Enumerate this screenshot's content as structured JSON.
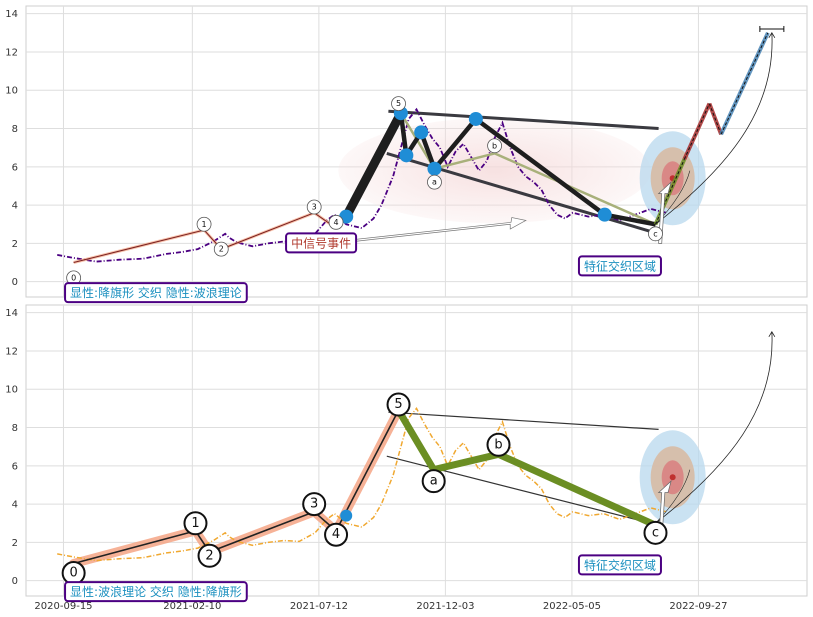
{
  "chart_data": [
    {
      "type": "line",
      "ylim": [
        -0.8,
        14.4
      ],
      "yticks": [
        0,
        2,
        4,
        6,
        8,
        10,
        12,
        14
      ],
      "xticks": [
        "2020-09-15",
        "2021-02-10",
        "2021-07-12",
        "2021-12-03",
        "2022-05-05",
        "2022-09-27"
      ],
      "grid": true,
      "price_color": "#4b0082",
      "price_series": [
        [
          0.04,
          1.4
        ],
        [
          0.06,
          1.25
        ],
        [
          0.09,
          1.05
        ],
        [
          0.12,
          1.15
        ],
        [
          0.15,
          1.2
        ],
        [
          0.18,
          1.45
        ],
        [
          0.2,
          1.55
        ],
        [
          0.22,
          1.7
        ],
        [
          0.24,
          2.1
        ],
        [
          0.255,
          2.5
        ],
        [
          0.26,
          2.3
        ],
        [
          0.27,
          2.05
        ],
        [
          0.29,
          1.85
        ],
        [
          0.31,
          2.0
        ],
        [
          0.33,
          2.1
        ],
        [
          0.35,
          2.05
        ],
        [
          0.37,
          2.5
        ],
        [
          0.385,
          3.2
        ],
        [
          0.395,
          3.5
        ],
        [
          0.41,
          3.0
        ],
        [
          0.43,
          2.8
        ],
        [
          0.445,
          3.3
        ],
        [
          0.455,
          4.0
        ],
        [
          0.47,
          5.5
        ],
        [
          0.48,
          7.0
        ],
        [
          0.49,
          8.5
        ],
        [
          0.5,
          9.0
        ],
        [
          0.51,
          8.2
        ],
        [
          0.52,
          7.5
        ],
        [
          0.53,
          7.0
        ],
        [
          0.54,
          6.0
        ],
        [
          0.55,
          6.8
        ],
        [
          0.56,
          7.2
        ],
        [
          0.57,
          6.5
        ],
        [
          0.58,
          5.8
        ],
        [
          0.59,
          6.3
        ],
        [
          0.6,
          7.5
        ],
        [
          0.61,
          8.3
        ],
        [
          0.62,
          7.0
        ],
        [
          0.63,
          6.0
        ],
        [
          0.64,
          5.5
        ],
        [
          0.65,
          5.2
        ],
        [
          0.66,
          4.8
        ],
        [
          0.67,
          4.0
        ],
        [
          0.68,
          3.5
        ],
        [
          0.69,
          3.3
        ],
        [
          0.7,
          3.6
        ],
        [
          0.72,
          3.4
        ],
        [
          0.74,
          3.5
        ],
        [
          0.76,
          3.2
        ],
        [
          0.78,
          3.5
        ],
        [
          0.8,
          3.8
        ],
        [
          0.82,
          3.6
        ]
      ],
      "wave_labels": [
        {
          "label": "0",
          "x": 0.061,
          "y": 0.2
        },
        {
          "label": "1",
          "x": 0.228,
          "y": 3.0
        },
        {
          "label": "2",
          "x": 0.25,
          "y": 1.7
        },
        {
          "label": "3",
          "x": 0.369,
          "y": 3.9
        },
        {
          "label": "4",
          "x": 0.397,
          "y": 3.1
        },
        {
          "label": "5",
          "x": 0.477,
          "y": 9.3
        },
        {
          "label": "a",
          "x": 0.523,
          "y": 5.2
        },
        {
          "label": "b",
          "x": 0.6,
          "y": 7.1
        },
        {
          "label": "c",
          "x": 0.806,
          "y": 2.5
        }
      ],
      "thin_waves": [
        [
          [
            0.061,
            1.0
          ],
          [
            0.228,
            2.7
          ],
          [
            0.25,
            1.7
          ],
          [
            0.369,
            3.6
          ],
          [
            0.397,
            2.8
          ]
        ]
      ],
      "thick_waves": [
        [
          [
            0.41,
            3.4
          ],
          [
            0.48,
            8.8
          ],
          [
            0.487,
            6.6
          ],
          [
            0.506,
            7.8
          ],
          [
            0.523,
            5.9
          ],
          [
            0.576,
            8.5
          ],
          [
            0.741,
            3.5
          ],
          [
            0.806,
            3.0
          ]
        ]
      ],
      "olive_waves": [
        [
          [
            0.48,
            8.8
          ],
          [
            0.523,
            5.9
          ],
          [
            0.6,
            6.7
          ],
          [
            0.806,
            3.0
          ]
        ]
      ],
      "blue_dots": [
        [
          0.41,
          3.4
        ],
        [
          0.48,
          8.8
        ],
        [
          0.487,
          6.6
        ],
        [
          0.506,
          7.8
        ],
        [
          0.523,
          5.9
        ],
        [
          0.576,
          8.5
        ],
        [
          0.741,
          3.5
        ]
      ],
      "channel_lines": [
        [
          [
            0.464,
            8.9
          ],
          [
            0.81,
            8.0
          ]
        ],
        [
          [
            0.462,
            6.7
          ],
          [
            0.81,
            2.5
          ]
        ]
      ],
      "projection": [
        [
          0.806,
          3.0
        ],
        [
          0.843,
          6.4
        ],
        [
          0.875,
          9.3
        ],
        [
          0.89,
          7.7
        ],
        [
          0.95,
          13.0
        ]
      ],
      "projection_segment_colors": [
        "#6b8e23",
        "#a52a2a",
        "#a52a2a",
        "#4682b4"
      ],
      "marker": {
        "x": 0.955,
        "y": 13.2
      },
      "annotation_boxes": [
        {
          "text": "显性:降旗形 交织 隐性:波浪理论",
          "x": 0.05,
          "y": -0.6,
          "text_color": "#1a8fbf",
          "border": "#4b0082"
        },
        {
          "text": "中信号事件",
          "x": 0.333,
          "y": 2.0,
          "text_color": "#b03a2e",
          "border": "#4b0082"
        },
        {
          "text": "特征交织区域",
          "x": 0.708,
          "y": 0.8,
          "text_color": "#1a8fbf",
          "border": "#4b0082"
        }
      ]
    },
    {
      "type": "line",
      "ylim": [
        -0.8,
        14.4
      ],
      "yticks": [
        0,
        2,
        4,
        6,
        8,
        10,
        12,
        14
      ],
      "xticks": [
        "2020-09-15",
        "2021-02-10",
        "2021-07-12",
        "2021-12-03",
        "2022-05-05",
        "2022-09-27"
      ],
      "grid": true,
      "price_color": "#f0a830",
      "price_series": [
        [
          0.04,
          1.4
        ],
        [
          0.06,
          1.25
        ],
        [
          0.09,
          1.05
        ],
        [
          0.12,
          1.15
        ],
        [
          0.15,
          1.2
        ],
        [
          0.18,
          1.45
        ],
        [
          0.2,
          1.55
        ],
        [
          0.22,
          1.7
        ],
        [
          0.24,
          2.1
        ],
        [
          0.255,
          2.5
        ],
        [
          0.26,
          2.3
        ],
        [
          0.27,
          2.05
        ],
        [
          0.29,
          1.85
        ],
        [
          0.31,
          2.0
        ],
        [
          0.33,
          2.1
        ],
        [
          0.35,
          2.05
        ],
        [
          0.37,
          2.5
        ],
        [
          0.385,
          3.2
        ],
        [
          0.395,
          3.5
        ],
        [
          0.41,
          3.0
        ],
        [
          0.43,
          2.8
        ],
        [
          0.445,
          3.3
        ],
        [
          0.455,
          4.0
        ],
        [
          0.47,
          5.5
        ],
        [
          0.48,
          7.0
        ],
        [
          0.49,
          8.5
        ],
        [
          0.5,
          9.0
        ],
        [
          0.51,
          8.2
        ],
        [
          0.52,
          7.5
        ],
        [
          0.53,
          7.0
        ],
        [
          0.54,
          6.0
        ],
        [
          0.55,
          6.8
        ],
        [
          0.56,
          7.2
        ],
        [
          0.57,
          6.5
        ],
        [
          0.58,
          5.8
        ],
        [
          0.59,
          6.3
        ],
        [
          0.6,
          7.5
        ],
        [
          0.61,
          8.3
        ],
        [
          0.62,
          7.0
        ],
        [
          0.63,
          6.0
        ],
        [
          0.64,
          5.5
        ],
        [
          0.65,
          5.2
        ],
        [
          0.66,
          4.8
        ],
        [
          0.67,
          4.0
        ],
        [
          0.68,
          3.5
        ],
        [
          0.69,
          3.3
        ],
        [
          0.7,
          3.6
        ],
        [
          0.72,
          3.4
        ],
        [
          0.74,
          3.5
        ],
        [
          0.76,
          3.2
        ],
        [
          0.78,
          3.5
        ],
        [
          0.8,
          3.8
        ],
        [
          0.82,
          3.6
        ]
      ],
      "wave_labels": [
        {
          "label": "0",
          "x": 0.061,
          "y": 0.4
        },
        {
          "label": "1",
          "x": 0.217,
          "y": 3.0
        },
        {
          "label": "2",
          "x": 0.235,
          "y": 1.3
        },
        {
          "label": "3",
          "x": 0.369,
          "y": 4.0
        },
        {
          "label": "4",
          "x": 0.397,
          "y": 2.4
        },
        {
          "label": "5",
          "x": 0.477,
          "y": 9.2
        },
        {
          "label": "a",
          "x": 0.522,
          "y": 5.2
        },
        {
          "label": "b",
          "x": 0.605,
          "y": 7.1
        },
        {
          "label": "c",
          "x": 0.806,
          "y": 2.5
        }
      ],
      "thin_waves": [
        [
          [
            0.061,
            0.9
          ],
          [
            0.217,
            2.6
          ],
          [
            0.235,
            1.5
          ],
          [
            0.369,
            3.6
          ],
          [
            0.397,
            2.6
          ],
          [
            0.477,
            8.9
          ]
        ]
      ],
      "thick_waves": [],
      "olive_waves": [
        [
          [
            0.477,
            8.9
          ],
          [
            0.522,
            5.8
          ],
          [
            0.605,
            6.6
          ],
          [
            0.806,
            2.9
          ]
        ]
      ],
      "blue_dots": [
        [
          0.41,
          3.4
        ]
      ],
      "channel_lines": [
        [
          [
            0.464,
            8.8
          ],
          [
            0.81,
            7.9
          ]
        ],
        [
          [
            0.462,
            6.5
          ],
          [
            0.81,
            2.9
          ]
        ]
      ],
      "projection": [],
      "projection_segment_colors": [],
      "marker": null,
      "annotation_boxes": [
        {
          "text": "显性:波浪理论 交织 隐性:降旗形",
          "x": 0.05,
          "y": -0.6,
          "text_color": "#1a8fbf",
          "border": "#4b0082"
        },
        {
          "text": "特征交织区域",
          "x": 0.708,
          "y": 0.8,
          "text_color": "#1a8fbf",
          "border": "#4b0082"
        }
      ]
    }
  ]
}
